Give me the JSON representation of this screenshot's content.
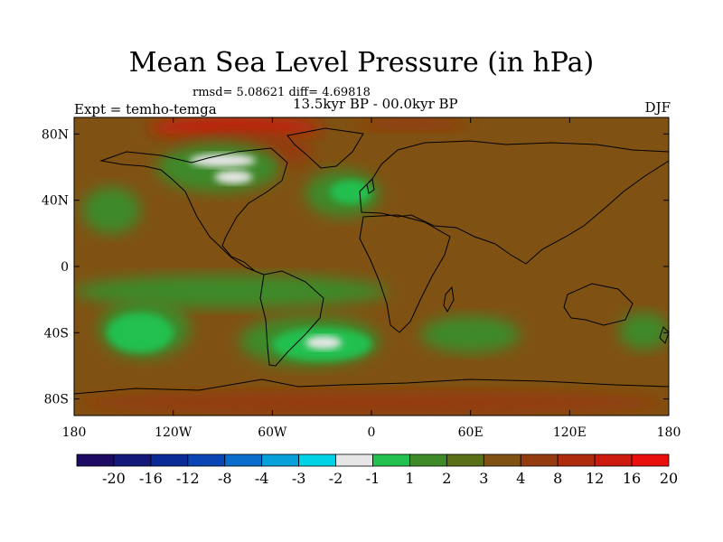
{
  "title": "Mean Sea Level Pressure (in hPa)",
  "stats_line": "rmsd= 5.08621 diff= 4.69818",
  "period": "13.5kyr BP - 00.0kyr BP",
  "experiment": "Expt = temho-temga",
  "season": "DJF",
  "colors": {
    "background_field": "#7f5213",
    "mid_green": "#3e8a29",
    "bright_green": "#22c04f",
    "light": "#e6e6e6",
    "warm": "#953b10",
    "hot": "#cc1b0e"
  },
  "chart_data": {
    "type": "heatmap",
    "title": "Mean Sea Level Pressure (in hPa)",
    "subtitle": "13.5kyr BP - 00.0kyr BP",
    "xlim": [
      -180,
      180
    ],
    "ylim": [
      -90,
      90
    ],
    "x_ticks": [
      {
        "value": -180,
        "label": "180"
      },
      {
        "value": -120,
        "label": "120W"
      },
      {
        "value": -60,
        "label": "60W"
      },
      {
        "value": 0,
        "label": "0"
      },
      {
        "value": 60,
        "label": "60E"
      },
      {
        "value": 120,
        "label": "120E"
      },
      {
        "value": 180,
        "label": "180"
      }
    ],
    "y_ticks": [
      {
        "value": 80,
        "label": "80N"
      },
      {
        "value": 40,
        "label": "40N"
      },
      {
        "value": 0,
        "label": "0"
      },
      {
        "value": -40,
        "label": "40S"
      },
      {
        "value": -80,
        "label": "80S"
      }
    ],
    "colorbar": {
      "colors": [
        "#1d0a62",
        "#141878",
        "#0a2a96",
        "#0946b4",
        "#0a6ccb",
        "#08a0d8",
        "#00d2e6",
        "#e6e6e6",
        "#22c04f",
        "#3e8a29",
        "#5a7016",
        "#7f5213",
        "#953b10",
        "#ad2c0c",
        "#cc1b0e",
        "#e80f0c"
      ],
      "labels": [
        "-20",
        "-16",
        "-12",
        "-8",
        "-4",
        "-3",
        "-2",
        "-1",
        "1",
        "2",
        "3",
        "4",
        "8",
        "12",
        "16",
        "20"
      ]
    },
    "regions": [
      {
        "level": "hot",
        "lon": [
          -135,
          -30
        ],
        "lat": [
          78,
          90
        ]
      },
      {
        "level": "warm",
        "lon": [
          -125,
          -35
        ],
        "lat": [
          58,
          82
        ]
      },
      {
        "level": "warm",
        "lon": [
          -10,
          60
        ],
        "lat": [
          82,
          90
        ]
      },
      {
        "level": "warm",
        "lon": [
          -180,
          180
        ],
        "lat": [
          -90,
          -75
        ]
      },
      {
        "level": "mid_green",
        "lon": [
          -130,
          -55
        ],
        "lat": [
          45,
          75
        ]
      },
      {
        "level": "light",
        "lon": [
          -110,
          -70
        ],
        "lat": [
          60,
          68
        ]
      },
      {
        "level": "light",
        "lon": [
          -95,
          -72
        ],
        "lat": [
          50,
          58
        ]
      },
      {
        "level": "mid_green",
        "lon": [
          -40,
          5
        ],
        "lat": [
          30,
          58
        ]
      },
      {
        "level": "bright_green",
        "lon": [
          -25,
          0
        ],
        "lat": [
          38,
          52
        ]
      },
      {
        "level": "mid_green",
        "lon": [
          -175,
          -140
        ],
        "lat": [
          20,
          48
        ]
      },
      {
        "level": "mid_green",
        "lon": [
          -180,
          10
        ],
        "lat": [
          -25,
          -5
        ]
      },
      {
        "level": "mid_green",
        "lon": [
          -165,
          -110
        ],
        "lat": [
          -55,
          -20
        ]
      },
      {
        "level": "bright_green",
        "lon": [
          -160,
          -120
        ],
        "lat": [
          -52,
          -28
        ]
      },
      {
        "level": "mid_green",
        "lon": [
          -80,
          5
        ],
        "lat": [
          -60,
          -30
        ]
      },
      {
        "level": "bright_green",
        "lon": [
          -60,
          0
        ],
        "lat": [
          -57,
          -37
        ]
      },
      {
        "level": "light",
        "lon": [
          -40,
          -18
        ],
        "lat": [
          -50,
          -42
        ]
      },
      {
        "level": "mid_green",
        "lon": [
          30,
          90
        ],
        "lat": [
          -52,
          -30
        ]
      },
      {
        "level": "mid_green",
        "lon": [
          150,
          180
        ],
        "lat": [
          -50,
          -28
        ]
      }
    ]
  }
}
